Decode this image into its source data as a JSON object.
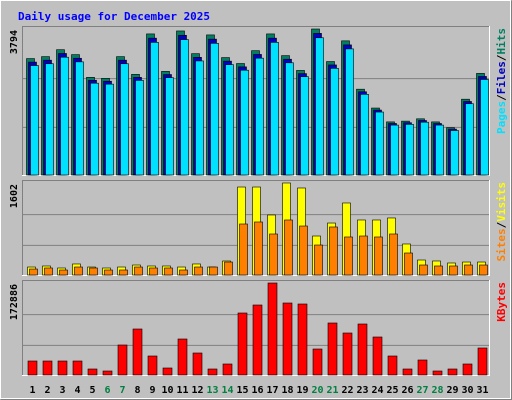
{
  "title": "Daily usage for December 2025",
  "legend_separator": "/",
  "chart_data": [
    {
      "type": "bar",
      "ylim": [
        0,
        3794
      ],
      "yticks": [
        3794
      ],
      "series": [
        {
          "name": "Pages",
          "color": "#00e0ff",
          "values": [
            2844,
            2891,
            3061,
            2940,
            2386,
            2361,
            2891,
            2458,
            3446,
            2530,
            3518,
            2964,
            3422,
            2868,
            2723,
            3036,
            3446,
            2916,
            2554,
            3566,
            2771,
            3277,
            2096,
            1636,
            1297,
            1316,
            1372,
            1297,
            1156,
            1852,
            2482
          ]
        },
        {
          "name": "Files",
          "color": "#0000c0",
          "values": [
            2934,
            2984,
            3158,
            3034,
            2462,
            2437,
            2984,
            2537,
            3556,
            2611,
            3631,
            3058,
            3531,
            2959,
            2810,
            3133,
            3556,
            3009,
            2635,
            3680,
            2860,
            3381,
            2163,
            1688,
            1339,
            1358,
            1416,
            1339,
            1193,
            1911,
            2561
          ]
        },
        {
          "name": "Hits",
          "color": "#008060",
          "values": [
            3025,
            3076,
            3256,
            3128,
            2538,
            2512,
            3076,
            2615,
            3666,
            2692,
            3743,
            3153,
            3640,
            3051,
            2897,
            3230,
            3666,
            3102,
            2717,
            3794,
            2948,
            3486,
            2230,
            1740,
            1380,
            1400,
            1460,
            1380,
            1230,
            1970,
            2640
          ]
        }
      ]
    },
    {
      "type": "bar",
      "ylim": [
        0,
        1602
      ],
      "yticks": [
        1602
      ],
      "series": [
        {
          "name": "Sites",
          "color": "#ff8000",
          "values": [
            104,
            122,
            87,
            139,
            122,
            87,
            87,
            139,
            122,
            122,
            87,
            139,
            139,
            226,
            888,
            923,
            714,
            958,
            853,
            522,
            836,
            662,
            679,
            662,
            714,
            383,
            174,
            157,
            157,
            174,
            174
          ]
        },
        {
          "name": "Visits",
          "color": "#ffff00",
          "values": [
            139,
            157,
            122,
            192,
            139,
            122,
            139,
            174,
            157,
            157,
            139,
            192,
            139,
            244,
            1532,
            1532,
            1045,
            1602,
            1515,
            679,
            905,
            1254,
            958,
            958,
            993,
            540,
            261,
            244,
            209,
            226,
            226
          ]
        }
      ]
    },
    {
      "type": "bar",
      "ylim": [
        0,
        172886
      ],
      "yticks": [
        172886
      ],
      "categories": [
        "1",
        "2",
        "3",
        "4",
        "5",
        "6",
        "7",
        "8",
        "9",
        "10",
        "11",
        "12",
        "13",
        "14",
        "15",
        "16",
        "17",
        "18",
        "19",
        "20",
        "21",
        "22",
        "23",
        "24",
        "25",
        "26",
        "27",
        "28",
        "29",
        "30",
        "31"
      ],
      "category_colors": [
        "#000000",
        "#000000",
        "#000000",
        "#000000",
        "#000000",
        "#008040",
        "#008040",
        "#000000",
        "#000000",
        "#000000",
        "#000000",
        "#000000",
        "#008040",
        "#008040",
        "#000000",
        "#000000",
        "#000000",
        "#000000",
        "#000000",
        "#008040",
        "#008040",
        "#000000",
        "#000000",
        "#000000",
        "#000000",
        "#000000",
        "#008040",
        "#008040",
        "#000000",
        "#000000",
        "#000000"
      ],
      "series": [
        {
          "name": "KBytes",
          "color": "#ff0000",
          "values": [
            26309,
            26309,
            26309,
            26309,
            11275,
            7517,
            56376,
            86443,
            35705,
            13154,
            67651,
            41343,
            11275,
            20671,
            116511,
            131545,
            172886,
            135303,
            133424,
            48860,
            97718,
            78926,
            95839,
            71410,
            35705,
            11275,
            28188,
            7517,
            11275,
            20671,
            50739
          ]
        }
      ]
    }
  ]
}
